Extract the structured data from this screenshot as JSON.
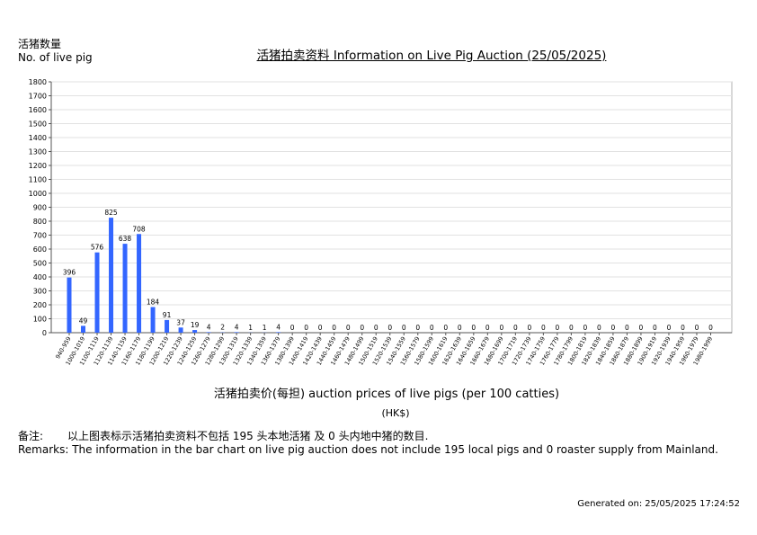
{
  "y_axis_title_cn": "活猪数量",
  "y_axis_title_en": "No. of live pig",
  "title": "活猪拍卖资料 Information on Live Pig Auction (25/05/2025)",
  "x_axis_title": "活猪拍卖价(每担) auction prices of live pigs (per 100 catties)",
  "unit": "(HK$)",
  "remarks": {
    "cn_label": "备注:",
    "cn_text": "以上图表标示活猪拍卖资料不包括 195 头本地活猪 及 0 头内地中猪的数目.",
    "en_text": "Remarks: The information in the bar chart on live pig auction does not include 195 local pigs and 0 roaster supply from Mainland."
  },
  "generated": {
    "label": "Generated on:",
    "value": "25/05/2025 17:24:52"
  },
  "chart_data": {
    "type": "bar",
    "bar_color": "#3366ff",
    "ylim": [
      0,
      1800
    ],
    "yticks": [
      0,
      100,
      200,
      300,
      400,
      500,
      600,
      700,
      800,
      900,
      1000,
      1100,
      1200,
      1300,
      1400,
      1500,
      1600,
      1700,
      1800
    ],
    "grid": true,
    "categories": [
      "940-959",
      "1000-1019",
      "1100-1119",
      "1120-1139",
      "1140-1159",
      "1160-1179",
      "1180-1199",
      "1200-1219",
      "1220-1239",
      "1240-1259",
      "1260-1279",
      "1280-1299",
      "1300-1319",
      "1320-1339",
      "1340-1359",
      "1360-1379",
      "1380-1399",
      "1400-1419",
      "1420-1439",
      "1440-1459",
      "1460-1479",
      "1480-1499",
      "1500-1519",
      "1520-1539",
      "1540-1559",
      "1560-1579",
      "1580-1599",
      "1600-1619",
      "1620-1639",
      "1640-1659",
      "1660-1679",
      "1680-1699",
      "1700-1719",
      "1720-1739",
      "1740-1759",
      "1760-1779",
      "1780-1799",
      "1800-1819",
      "1820-1839",
      "1840-1859",
      "1860-1879",
      "1880-1899",
      "1900-1919",
      "1920-1939",
      "1940-1959",
      "1960-1979",
      "1980-1999"
    ],
    "values": [
      396,
      49,
      576,
      825,
      638,
      708,
      184,
      91,
      37,
      19,
      4,
      2,
      4,
      1,
      1,
      4,
      0,
      0,
      0,
      0,
      0,
      0,
      0,
      0,
      0,
      0,
      0,
      0,
      0,
      0,
      0,
      0,
      0,
      0,
      0,
      0,
      0,
      0,
      0,
      0,
      0,
      0,
      0,
      0,
      0,
      0,
      0
    ]
  }
}
